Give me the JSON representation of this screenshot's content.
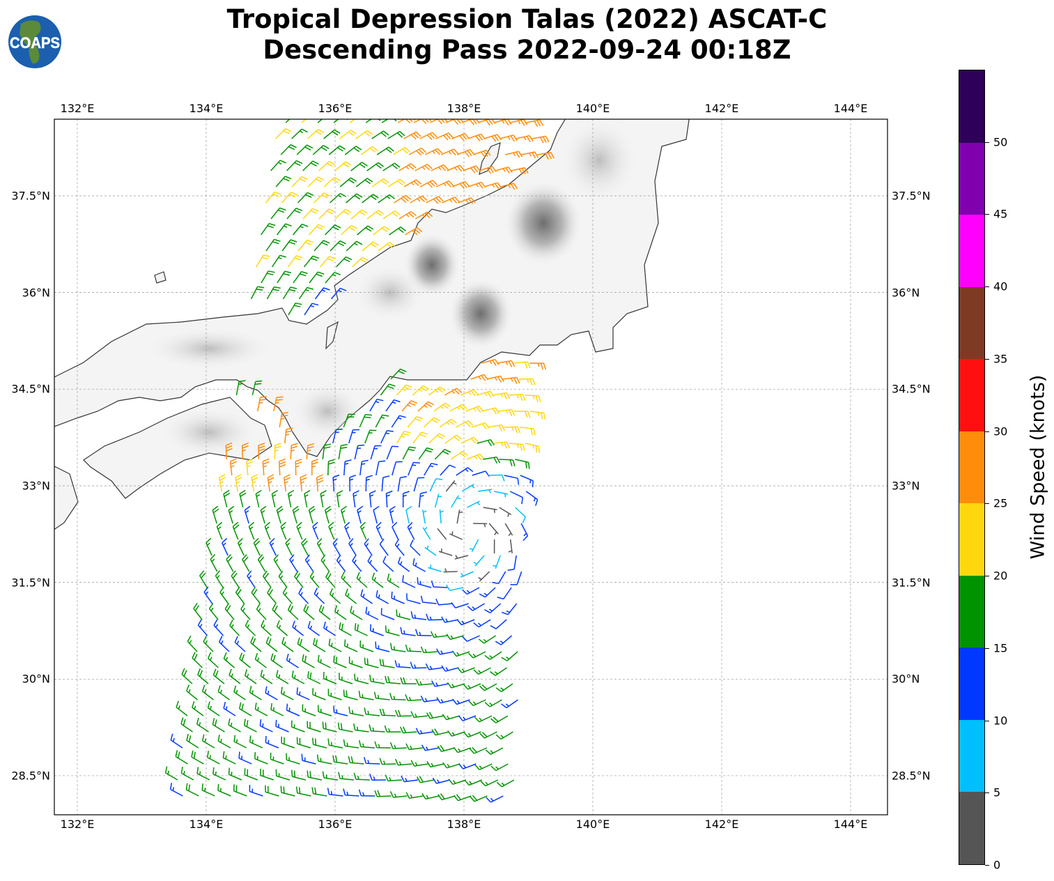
{
  "title": {
    "line1": "Tropical Depression Talas (2022) ASCAT-C",
    "line2": "Descending Pass 2022-09-24 00:18Z"
  },
  "logo": {
    "text": "COAPS"
  },
  "map": {
    "lon_ticks": [
      "132°E",
      "134°E",
      "136°E",
      "138°E",
      "140°E",
      "142°E",
      "144°E"
    ],
    "lat_ticks": [
      "37.5°N",
      "36°N",
      "34.5°N",
      "33°N",
      "31.5°N",
      "30°N",
      "28.5°N"
    ],
    "lon_range": [
      131.64,
      144.58
    ],
    "lat_range": [
      27.9,
      38.7
    ],
    "barb_field": {
      "center_lon": 138.1,
      "center_lat": 32.3,
      "units": "knots"
    }
  },
  "colorbar": {
    "label": "Wind Speed (knots)",
    "tick_labels": [
      "0",
      "5",
      "10",
      "15",
      "20",
      "25",
      "30",
      "35",
      "40",
      "45",
      "50"
    ],
    "bins": [
      0,
      5,
      10,
      15,
      20,
      25,
      30,
      35,
      40,
      45,
      50,
      55
    ],
    "colors": [
      "#555555",
      "#00bfff",
      "#0038ff",
      "#009300",
      "#ffd70f",
      "#ff8c0a",
      "#ff1010",
      "#7f3a24",
      "#ff00ff",
      "#8000b0",
      "#2e005a"
    ]
  }
}
